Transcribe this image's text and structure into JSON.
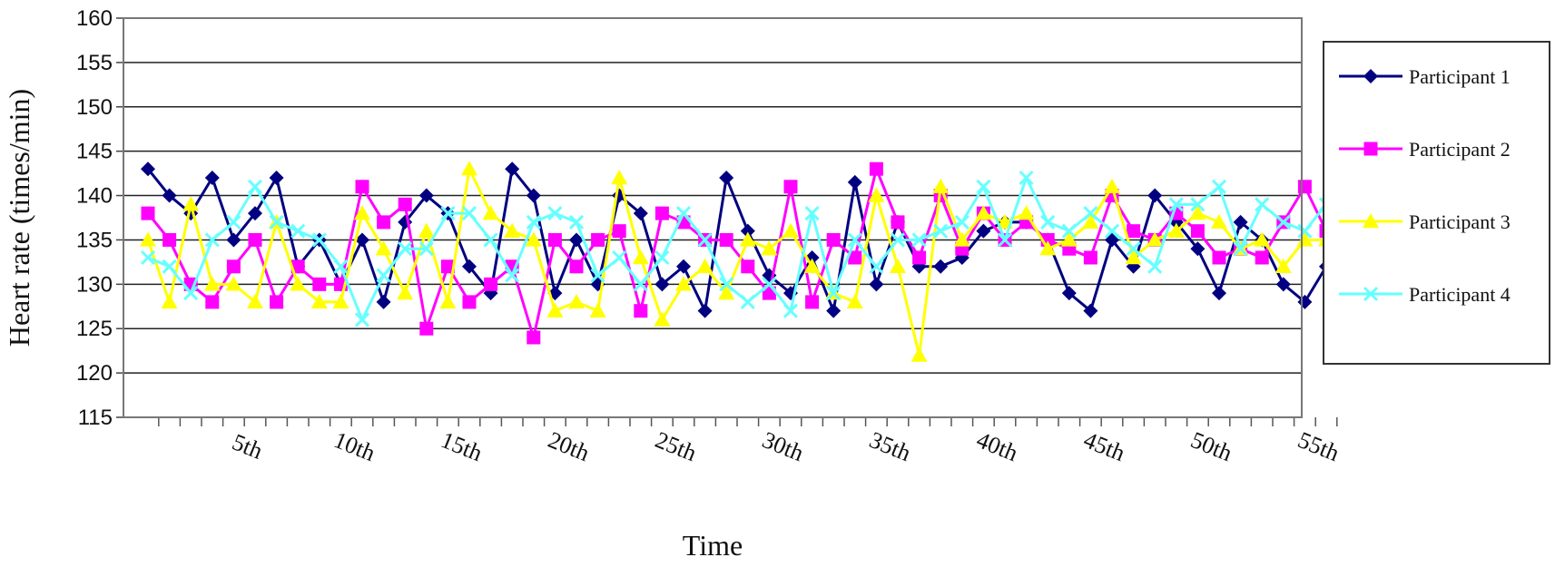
{
  "chart_data": {
    "type": "line",
    "title": "",
    "xlabel": "Time",
    "ylabel": "Heart rate (times/min)",
    "ylim": [
      115,
      160
    ],
    "yticks": [
      115,
      120,
      125,
      130,
      135,
      140,
      145,
      150,
      155,
      160
    ],
    "xlim": [
      1,
      56
    ],
    "xtick_values": [
      5,
      10,
      15,
      20,
      25,
      30,
      35,
      40,
      45,
      50,
      55
    ],
    "xtick_labels": [
      "5th",
      "10th",
      "15th",
      "20th",
      "25th",
      "30th",
      "35th",
      "40th",
      "45th",
      "50th",
      "55th"
    ],
    "grid": true,
    "legend": "right",
    "series": [
      {
        "name": "Participant 1",
        "color": "#000080",
        "marker": "diamond",
        "values": [
          143,
          140,
          138,
          142,
          135,
          138,
          142,
          132,
          135,
          130,
          135,
          128,
          137,
          140,
          138,
          132,
          129,
          143,
          140,
          129,
          135,
          130,
          140,
          138,
          130,
          132,
          127,
          142,
          136,
          131,
          129,
          133,
          127,
          141.5,
          130,
          137,
          132,
          132,
          133,
          136,
          137,
          137,
          135,
          129,
          127,
          135,
          132,
          140,
          137,
          134,
          129,
          137,
          135,
          130,
          128,
          132
        ]
      },
      {
        "name": "Participant 2",
        "color": "#FF00FF",
        "marker": "square",
        "values": [
          138,
          135,
          130,
          128,
          132,
          135,
          128,
          132,
          130,
          130,
          141,
          137,
          139,
          125,
          132,
          128,
          130,
          132,
          124,
          135,
          132,
          135,
          136,
          127,
          138,
          137,
          135,
          135,
          132,
          129,
          141,
          128,
          135,
          133,
          143,
          137,
          133,
          140,
          134,
          138,
          135,
          137,
          135,
          134,
          133,
          140,
          136,
          135,
          138,
          136,
          133,
          134,
          133,
          137,
          141,
          136
        ]
      },
      {
        "name": "Participant 3",
        "color": "#FFFF00",
        "marker": "triangle",
        "values": [
          135,
          128,
          139,
          130,
          130,
          128,
          137,
          130,
          128,
          128,
          138,
          134,
          129,
          136,
          128,
          143,
          138,
          136,
          135,
          127,
          128,
          127,
          142,
          133,
          126,
          130,
          132,
          129,
          135,
          134,
          136,
          132,
          129,
          128,
          140,
          132,
          122,
          141,
          135,
          138,
          137,
          138,
          134,
          135,
          137,
          141,
          133,
          135,
          136,
          138,
          137,
          134,
          135,
          132,
          135,
          135
        ]
      },
      {
        "name": "Participant 4",
        "color": "#66FFFF",
        "marker": "x",
        "values": [
          133,
          132,
          129,
          135,
          137,
          141,
          137,
          136,
          135,
          132,
          126,
          131,
          134,
          134,
          138,
          138,
          135,
          131,
          137,
          138,
          137,
          131,
          133,
          130,
          133,
          138,
          135,
          130,
          128,
          130,
          127,
          138,
          129,
          135,
          132,
          135,
          135,
          136,
          137,
          141,
          135,
          142,
          137,
          136,
          138,
          136,
          134,
          132,
          139,
          139,
          141,
          134,
          139,
          137,
          136,
          139
        ]
      }
    ]
  }
}
